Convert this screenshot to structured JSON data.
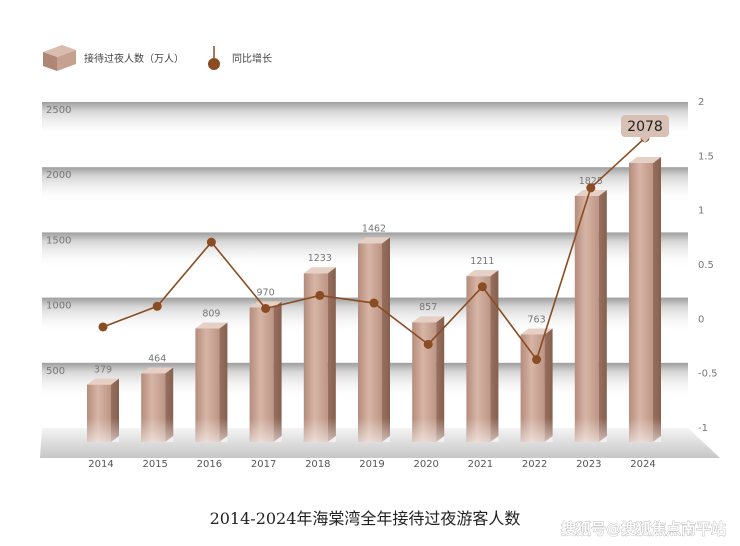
{
  "chart_data": {
    "type": "bar",
    "title": "2014-2024年海棠湾全年接待过夜游客人数",
    "categories": [
      "2014",
      "2015",
      "2016",
      "2017",
      "2018",
      "2019",
      "2020",
      "2021",
      "2022",
      "2023",
      "2024"
    ],
    "series": [
      {
        "name": "接待过夜人数（万人）",
        "type": "bar",
        "axis": "left",
        "values": [
          379,
          464,
          809,
          970,
          1233,
          1462,
          857,
          1211,
          763,
          1825,
          2078
        ]
      },
      {
        "name": "同比增长",
        "type": "line",
        "axis": "right",
        "values": [
          -0.07,
          0.12,
          0.71,
          0.1,
          0.22,
          0.15,
          -0.23,
          0.3,
          -0.37,
          1.21,
          1.67
        ]
      }
    ],
    "y_left": {
      "ticks": [
        500,
        1000,
        1500,
        2000,
        2500
      ],
      "ylim": [
        0,
        2500
      ]
    },
    "y_right": {
      "ticks": [
        "2",
        "1.5",
        "1",
        "0.5",
        "0",
        "-0.5",
        "-1"
      ],
      "ylim": [
        -1,
        2
      ]
    },
    "highlight": {
      "category": "2024",
      "label": "2078"
    },
    "legend_position": "top-left",
    "colors": {
      "bar": "#c9a595",
      "line": "#8a4c22",
      "marker": "#8a4c22",
      "callout": "#d8c1b4"
    }
  },
  "watermark": "搜狐号@搜狐焦点南平站"
}
